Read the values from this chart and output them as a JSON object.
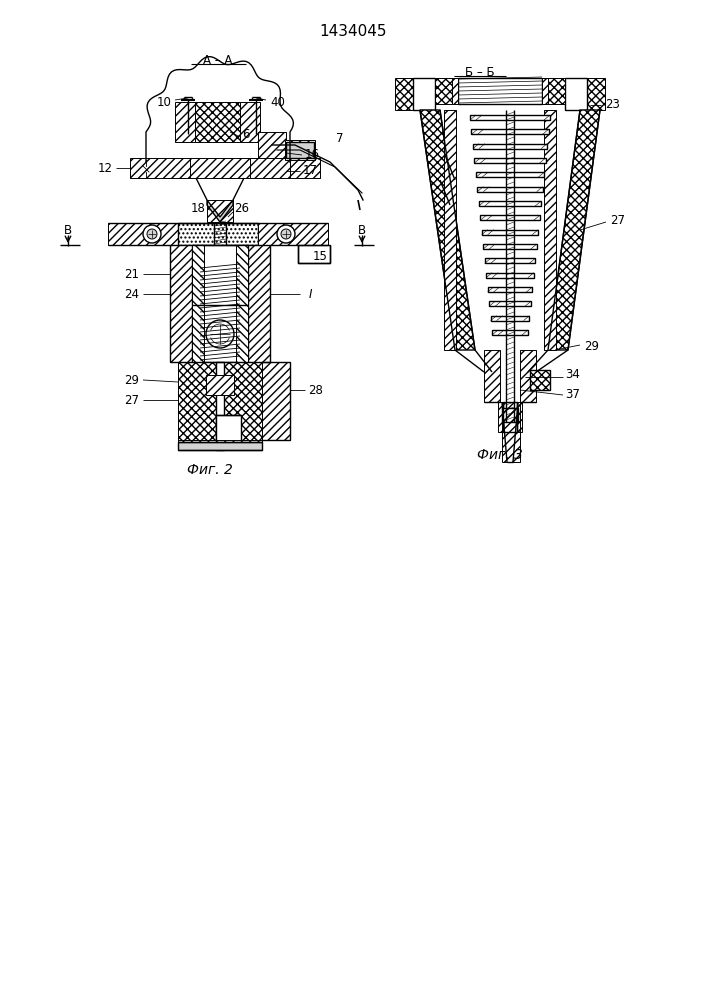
{
  "title": "1434045",
  "bg_color": "#ffffff",
  "line_color": "#000000",
  "fig2_caption": "Фиг. 2",
  "fig3_caption": "Фиг. 3",
  "section_aa": "А – А",
  "section_bb": "Б – Б"
}
